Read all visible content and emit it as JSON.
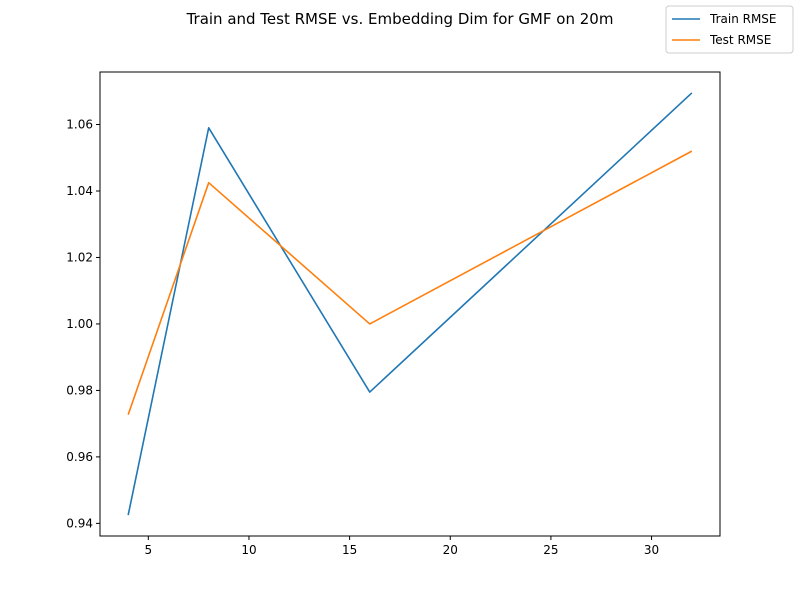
{
  "chart_data": {
    "type": "line",
    "title": "Train and Test RMSE vs. Embedding Dim for GMF on 20m",
    "xlabel": "",
    "ylabel": "",
    "x": [
      4,
      8,
      16,
      32
    ],
    "series": [
      {
        "name": "Train RMSE",
        "color": "#1f77b4",
        "values": [
          0.9425,
          1.059,
          0.9795,
          1.0695
        ]
      },
      {
        "name": "Test RMSE",
        "color": "#ff7f0e",
        "values": [
          0.9727,
          1.0425,
          1.0,
          1.052
        ]
      }
    ],
    "xlim": [
      2.6,
      33.4
    ],
    "ylim": [
      0.9362,
      1.0758
    ],
    "xticks": [
      5,
      10,
      15,
      20,
      25,
      30
    ],
    "yticks": [
      0.94,
      0.96,
      0.98,
      1.0,
      1.02,
      1.04,
      1.06
    ],
    "ytick_labels": [
      "0.94",
      "0.96",
      "0.98",
      "1.00",
      "1.02",
      "1.04",
      "1.06"
    ],
    "legend_position": "top-right",
    "grid": false
  }
}
